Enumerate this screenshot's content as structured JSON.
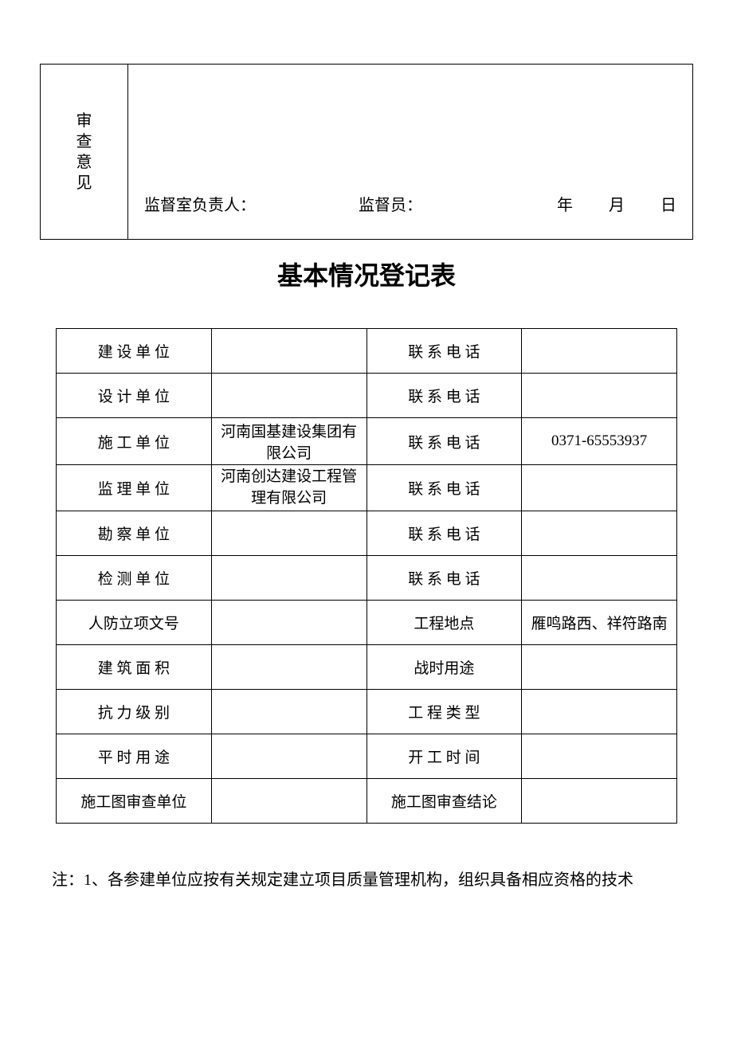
{
  "review": {
    "label": "审查意见",
    "supervisor_room_label": "监督室负责人：",
    "supervisor_label": "监督员：",
    "year_label": "年",
    "month_label": "月",
    "day_label": "日"
  },
  "title": "基本情况登记表",
  "rows": [
    {
      "label1": "建 设 单 位",
      "value1": "",
      "label2": "联 系 电 话",
      "value2": "",
      "spaced1": true,
      "spaced2": true
    },
    {
      "label1": "设 计 单 位",
      "value1": "",
      "label2": "联 系 电 话",
      "value2": "",
      "spaced1": true,
      "spaced2": true
    },
    {
      "label1": "施 工 单 位",
      "value1": "河南国基建设集团有限公司",
      "label2": "联 系 电 话",
      "value2": "0371-65553937",
      "spaced1": true,
      "spaced2": true,
      "small1": true
    },
    {
      "label1": "监 理 单 位",
      "value1": "河南创达建设工程管理有限公司",
      "label2": "联 系 电 话",
      "value2": "",
      "spaced1": true,
      "spaced2": true,
      "multi1": true
    },
    {
      "label1": "勘 察 单 位",
      "value1": "",
      "label2": "联 系 电 话",
      "value2": "",
      "spaced1": true,
      "spaced2": true
    },
    {
      "label1": "检 测 单 位",
      "value1": "",
      "label2": "联 系 电 话",
      "value2": "",
      "spaced1": true,
      "spaced2": true
    },
    {
      "label1": "人防立项文号",
      "value1": "",
      "label2": "工程地点",
      "value2": "雁鸣路西、祥符路南",
      "spaced1": false,
      "spaced2": false
    },
    {
      "label1": "建 筑 面 积",
      "value1": "",
      "label2": "战时用途",
      "value2": "",
      "spaced1": true,
      "spaced2": false
    },
    {
      "label1": "抗 力 级 别",
      "value1": "",
      "label2": "工 程 类 型",
      "value2": "",
      "spaced1": true,
      "spaced2": true
    },
    {
      "label1": "平 时 用 途",
      "value1": "",
      "label2": "开 工 时 间",
      "value2": "",
      "spaced1": true,
      "spaced2": true
    },
    {
      "label1": "施工图审查单位",
      "value1": "",
      "label2": "施工图审查结论",
      "value2": "",
      "spaced1": false,
      "spaced2": false
    }
  ],
  "note": "注：1、各参建单位应按有关规定建立项目质量管理机构，组织具备相应资格的技术"
}
